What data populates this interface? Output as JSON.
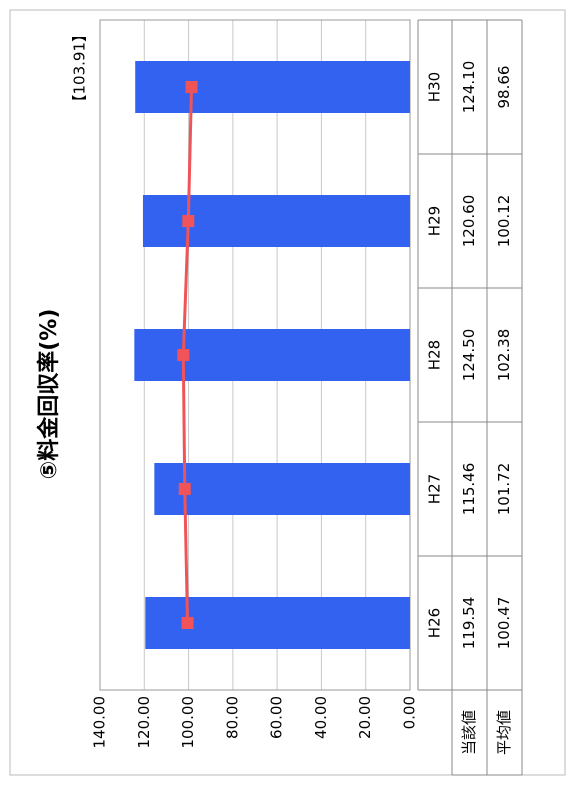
{
  "chart_data": {
    "type": "bar",
    "title": "⑤料金回収率(%)",
    "annotation": "【103.91】",
    "categories": [
      "H26",
      "H27",
      "H28",
      "H29",
      "H30"
    ],
    "series": [
      {
        "name": "当該値",
        "color": "#3462f0",
        "values": [
          119.54,
          115.46,
          124.5,
          120.6,
          124.1
        ],
        "value_labels": [
          "119.54",
          "115.46",
          "124.50",
          "120.60",
          "124.10"
        ]
      },
      {
        "name": "平均値",
        "color": "#f05358",
        "values": [
          100.47,
          101.72,
          102.38,
          100.12,
          98.66
        ],
        "value_labels": [
          "100.47",
          "101.72",
          "102.38",
          "100.12",
          "98.66"
        ]
      }
    ],
    "ylim": [
      0,
      140
    ],
    "yticks": [
      {
        "value": 0,
        "label": "0.00"
      },
      {
        "value": 20,
        "label": "20.00"
      },
      {
        "value": 40,
        "label": "40.00"
      },
      {
        "value": 60,
        "label": "60.00"
      },
      {
        "value": 80,
        "label": "80.00"
      },
      {
        "value": 100,
        "label": "100.00"
      },
      {
        "value": 120,
        "label": "120.00"
      },
      {
        "value": 140,
        "label": "140.00"
      }
    ],
    "grid": true
  }
}
